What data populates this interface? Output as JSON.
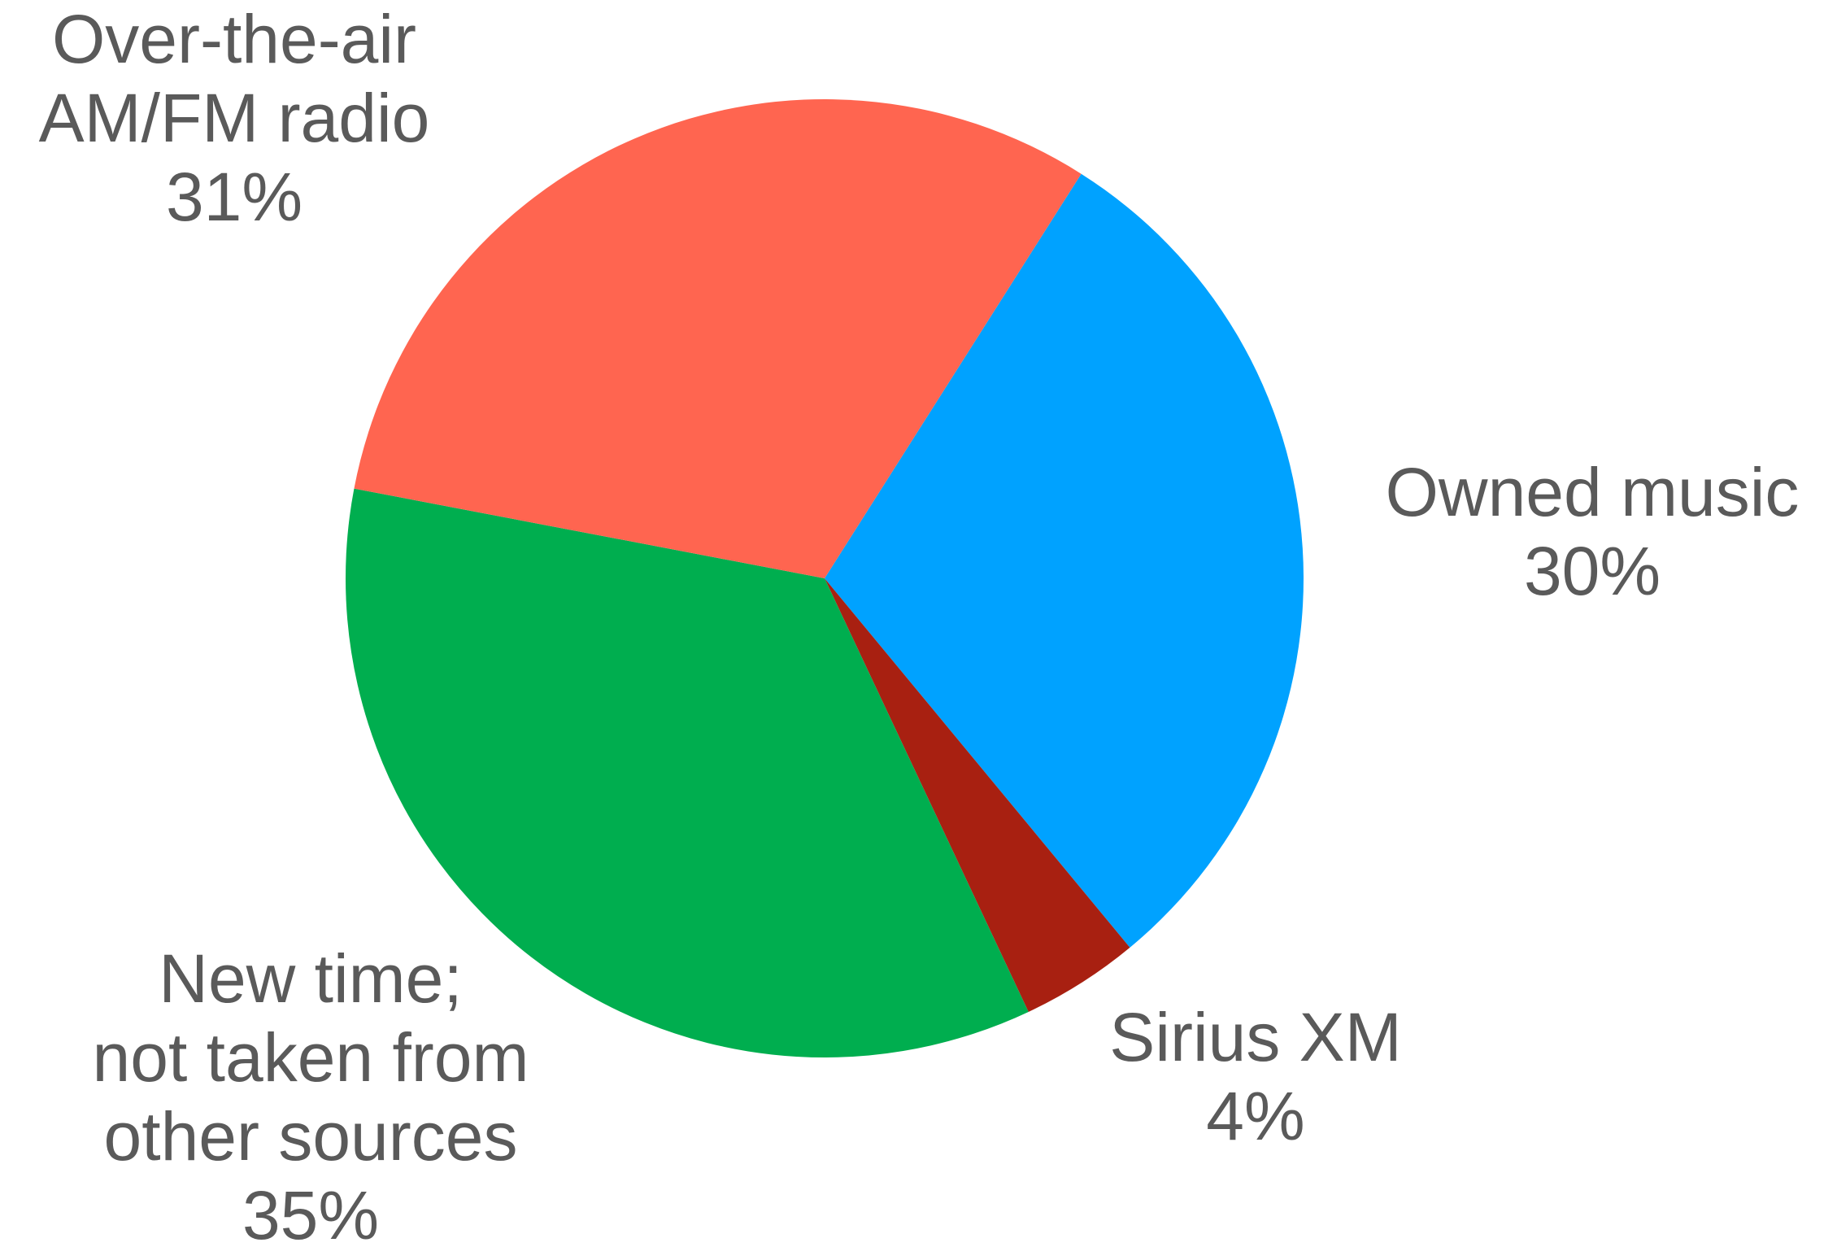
{
  "chart_data": {
    "type": "pie",
    "categories": [
      [
        "Owned music"
      ],
      [
        "Sirius XM"
      ],
      [
        "New time;",
        "not taken from",
        "other sources"
      ],
      [
        "Over-the-air",
        "AM/FM radio"
      ]
    ],
    "values": [
      30,
      4,
      35,
      31
    ],
    "value_labels": [
      "30%",
      "4%",
      "35%",
      "31%"
    ],
    "colors": [
      "#00a2ff",
      "#a82011",
      "#00ae4f",
      "#ff6550"
    ],
    "startangle": 32.4,
    "direction": "clockwise"
  }
}
